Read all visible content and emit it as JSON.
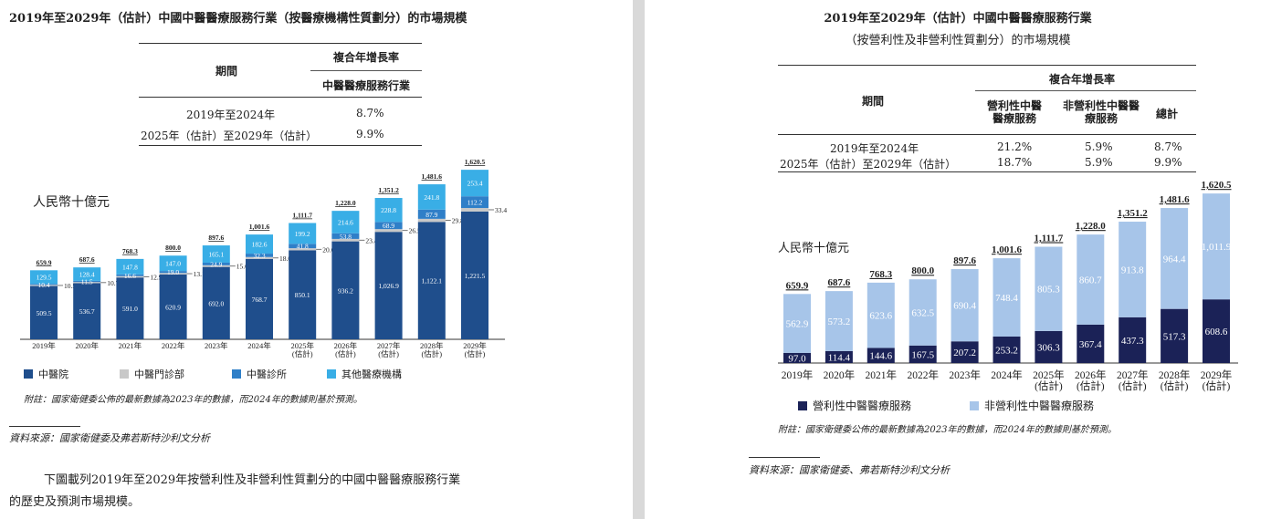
{
  "left": {
    "title": "2019年至2029年（估計）中國中醫醫療服務行業（按醫療機構性質劃分）的市場規模",
    "table": {
      "period_header": "期間",
      "cagr_header": "複合年增長率",
      "col_header": "中醫醫療服務行業",
      "rows": [
        {
          "period": "2019年至2024年",
          "value": "8.7%"
        },
        {
          "period": "2025年（估計）至2029年（估計）",
          "value": "9.9%"
        }
      ]
    },
    "unit_label": "人民幣十億元",
    "legend": [
      {
        "label": "中醫院",
        "color": "#1f4e8c"
      },
      {
        "label": "中醫門診部",
        "color": "#c8c8c8"
      },
      {
        "label": "中醫診所",
        "color": "#2f7fc8"
      },
      {
        "label": "其他醫療機構",
        "color": "#39aee6"
      }
    ],
    "note": "附註：國家衛健委公佈的最新數據為2023年的數據，而2024年的數據則基於預測。",
    "source": "資料來源：國家衛健委及弗若斯特沙利文分析",
    "paragraph_line1": "下圖載列2019年至2029年按營利性及非營利性質劃分的中國中醫醫療服務行業",
    "paragraph_line2": "的歷史及預測市場規模。"
  },
  "right": {
    "title_line1": "2019年至2029年（估計）中國中醫醫療服務行業",
    "title_line2": "（按營利性及非營利性質劃分）的市場規模",
    "table": {
      "period_header": "期間",
      "cagr_header": "複合年增長率",
      "col1": "營利性中醫醫療服務",
      "col2": "非營利性中醫醫療服務",
      "col3": "總計",
      "rows": [
        {
          "period": "2019年至2024年",
          "v1": "21.2%",
          "v2": "5.9%",
          "v3": "8.7%"
        },
        {
          "period": "2025年（估計）至2029年（估計）",
          "v1": "18.7%",
          "v2": "5.9%",
          "v3": "9.9%"
        }
      ]
    },
    "unit_label": "人民幣十億元",
    "legend": [
      {
        "label": "營利性中醫醫療服務",
        "color": "#1b2257"
      },
      {
        "label": "非營利性中醫醫療服務",
        "color": "#a7c5e9"
      }
    ],
    "note": "附註：國家衛健委公佈的最新數據為2023年的數據，而2024年的數據則基於預測。",
    "source": "資料來源：國家衛健委、弗若斯特沙利文分析"
  },
  "chart_data": [
    {
      "type": "bar",
      "stacked": true,
      "title": "2019年至2029年（估計）中國中醫醫療服務行業（按醫療機構性質劃分）的市場規模",
      "ylabel": "人民幣十億元",
      "categories": [
        "2019年",
        "2020年",
        "2021年",
        "2022年",
        "2023年",
        "2024年",
        "2025年\n(估計)",
        "2026年\n(估計)",
        "2027年\n(估計)",
        "2028年\n(估計)",
        "2029年\n(估計)"
      ],
      "series": [
        {
          "name": "中醫院",
          "color": "#1f4e8c",
          "values": [
            509.5,
            536.7,
            591.0,
            620.9,
            692.0,
            768.7,
            850.1,
            936.2,
            1026.9,
            1122.1,
            1221.5
          ]
        },
        {
          "name": "中醫門診部",
          "color": "#c8c8c8",
          "values": [
            10.5,
            10.7,
            12.9,
            13.1,
            15.6,
            18.0,
            20.6,
            23.4,
            26.5,
            29.8,
            33.4
          ]
        },
        {
          "name": "中醫診所",
          "color": "#2f7fc8",
          "values": [
            10.4,
            11.5,
            16.6,
            19.0,
            24.9,
            32.3,
            41.8,
            53.8,
            68.9,
            87.9,
            112.2
          ]
        },
        {
          "name": "其他醫療機構",
          "color": "#39aee6",
          "values": [
            129.5,
            128.4,
            147.8,
            147.0,
            165.1,
            182.6,
            199.2,
            214.6,
            228.8,
            241.8,
            253.4
          ]
        }
      ],
      "totals": [
        659.9,
        687.6,
        768.3,
        800.0,
        897.6,
        1001.6,
        1111.7,
        1228.0,
        1351.2,
        1481.6,
        1620.5
      ],
      "legend_position": "bottom",
      "grid": false
    },
    {
      "type": "bar",
      "stacked": true,
      "title": "2019年至2029年（估計）中國中醫醫療服務行業（按營利性及非營利性質劃分）的市場規模",
      "ylabel": "人民幣十億元",
      "categories": [
        "2019年",
        "2020年",
        "2021年",
        "2022年",
        "2023年",
        "2024年",
        "2025年\n(估計)",
        "2026年\n(估計)",
        "2027年\n(估計)",
        "2028年\n(估計)",
        "2029年\n(估計)"
      ],
      "series": [
        {
          "name": "營利性中醫醫療服務",
          "color": "#1b2257",
          "values": [
            97.0,
            114.4,
            144.6,
            167.5,
            207.2,
            253.2,
            306.3,
            367.4,
            437.3,
            517.3,
            608.6
          ]
        },
        {
          "name": "非營利性中醫醫療服務",
          "color": "#a7c5e9",
          "values": [
            562.9,
            573.2,
            623.6,
            632.5,
            690.4,
            748.4,
            805.3,
            860.7,
            913.8,
            964.4,
            1011.9
          ]
        }
      ],
      "totals": [
        659.9,
        687.6,
        768.3,
        800.0,
        897.6,
        1001.6,
        1111.7,
        1228.0,
        1351.2,
        1481.6,
        1620.5
      ],
      "legend_position": "bottom",
      "grid": false
    }
  ]
}
